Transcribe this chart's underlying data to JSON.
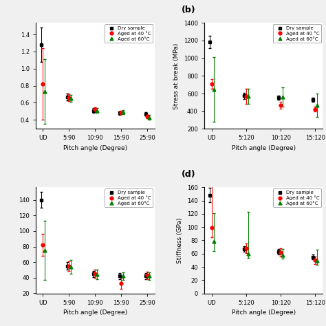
{
  "panel_a": {
    "xlabel": "Pitch angle (Degree)",
    "ylabel": "",
    "xticks": [
      "UD",
      "5:90",
      "10:90",
      "15:90",
      "25:90"
    ],
    "ylim_auto": true,
    "series": {
      "dry": {
        "color": "black",
        "marker": "s",
        "values": [
          1.28,
          0.67,
          0.51,
          0.48,
          0.47
        ],
        "yerr_lo": [
          0.2,
          0.04,
          0.03,
          0.02,
          0.02
        ],
        "yerr_hi": [
          0.2,
          0.04,
          0.03,
          0.02,
          0.02
        ],
        "label": "Dry sample"
      },
      "aged40": {
        "color": "red",
        "marker": "o",
        "values": [
          0.82,
          0.66,
          0.52,
          0.485,
          0.44
        ],
        "yerr_lo": [
          0.42,
          0.04,
          0.03,
          0.02,
          0.02
        ],
        "yerr_hi": [
          0.42,
          0.04,
          0.03,
          0.02,
          0.02
        ],
        "label": "Aged at 40 °C"
      },
      "aged60": {
        "color": "green",
        "marker": "^",
        "values": [
          0.73,
          0.655,
          0.51,
          0.49,
          0.43
        ],
        "yerr_lo": [
          0.38,
          0.04,
          0.03,
          0.025,
          0.025
        ],
        "yerr_hi": [
          0.38,
          0.04,
          0.03,
          0.025,
          0.025
        ],
        "label": "Aged at 60°C"
      }
    }
  },
  "panel_b": {
    "xlabel": "Pitch angle (Degree)",
    "ylabel": "Stress at break (MPa)",
    "panel_label": "(b)",
    "xticks": [
      "UD",
      "5:120",
      "10:120",
      "15:120"
    ],
    "ylim": [
      200,
      1400
    ],
    "yticks": [
      200,
      400,
      600,
      800,
      1000,
      1200,
      1400
    ],
    "series": {
      "dry": {
        "color": "black",
        "marker": "s",
        "values": [
          1185,
          575,
          555,
          530
        ],
        "yerr_lo": [
          70,
          35,
          25,
          20
        ],
        "yerr_hi": [
          70,
          35,
          25,
          20
        ],
        "label": "Dry s"
      },
      "aged40": {
        "color": "red",
        "marker": "o",
        "values": [
          710,
          570,
          468,
          425
        ],
        "yerr_lo": [
          55,
          85,
          38,
          30
        ],
        "yerr_hi": [
          55,
          85,
          38,
          30
        ],
        "label": "Aged"
      },
      "aged60": {
        "color": "green",
        "marker": "^",
        "values": [
          650,
          572,
          560,
          468
        ],
        "yerr_lo": [
          365,
          85,
          110,
          130
        ],
        "yerr_hi": [
          365,
          85,
          110,
          130
        ],
        "label": "Aged"
      }
    }
  },
  "panel_c": {
    "xlabel": "Pitch angle (Degree)",
    "ylabel": "",
    "xticks": [
      "UD",
      "5:90",
      "10:90",
      "15:90",
      "25:90"
    ],
    "ylim_auto": true,
    "series": {
      "dry": {
        "color": "black",
        "marker": "s",
        "values": [
          140,
          55,
          45,
          42,
          42
        ],
        "yerr_lo": [
          10,
          5,
          4,
          4,
          4
        ],
        "yerr_hi": [
          10,
          5,
          4,
          4,
          4
        ],
        "label": "Dry sample"
      },
      "aged40": {
        "color": "red",
        "marker": "o",
        "values": [
          82,
          55,
          45,
          33,
          43
        ],
        "yerr_lo": [
          14,
          6,
          5,
          7,
          5
        ],
        "yerr_hi": [
          14,
          6,
          5,
          7,
          5
        ],
        "label": "Aged at 40 °C"
      },
      "aged60": {
        "color": "green",
        "marker": "^",
        "values": [
          75,
          54,
          44,
          42,
          42
        ],
        "yerr_lo": [
          38,
          9,
          6,
          5,
          5
        ],
        "yerr_hi": [
          38,
          9,
          6,
          5,
          5
        ],
        "label": "Aged at 60°C"
      }
    }
  },
  "panel_d": {
    "xlabel": "Pitch angle (Degree)",
    "ylabel": "Stiffness (GPa)",
    "panel_label": "(d)",
    "xticks": [
      "UD",
      "5:120",
      "10:120",
      "15:120"
    ],
    "ylim": [
      0,
      160
    ],
    "yticks": [
      0,
      20,
      40,
      60,
      80,
      100,
      120,
      140,
      160
    ],
    "series": {
      "dry": {
        "color": "black",
        "marker": "s",
        "values": [
          148,
          67,
          63,
          55
        ],
        "yerr_lo": [
          11,
          4,
          4,
          4
        ],
        "yerr_hi": [
          11,
          4,
          4,
          4
        ],
        "label": "Dry s"
      },
      "aged40": {
        "color": "red",
        "marker": "o",
        "values": [
          99,
          68,
          62,
          50
        ],
        "yerr_lo": [
          14,
          7,
          6,
          6
        ],
        "yerr_hi": [
          68,
          7,
          6,
          6
        ],
        "label": "Aged"
      },
      "aged60": {
        "color": "green",
        "marker": "^",
        "values": [
          78,
          60,
          58,
          49
        ],
        "yerr_lo": [
          14,
          7,
          6,
          6
        ],
        "yerr_hi": [
          43,
          63,
          9,
          17
        ],
        "label": "Aged"
      }
    }
  },
  "background_color": "#f0f0f0",
  "plot_bg_color": "#ffffff",
  "legend_labels": {
    "dry": "Dry sample",
    "aged40": "Aged at 40 °C",
    "aged60": "Aged at 60°C"
  }
}
